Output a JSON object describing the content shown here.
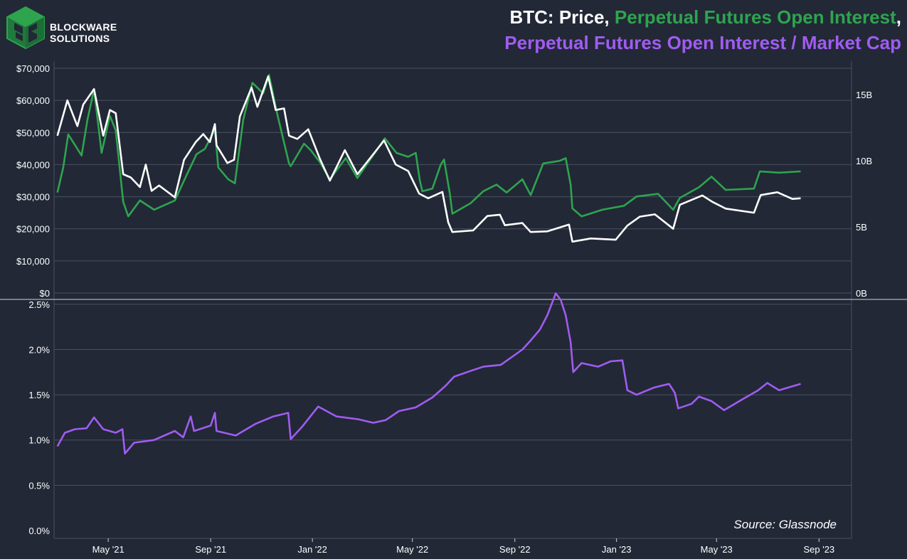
{
  "logo": {
    "line1": "BLOCKWARE",
    "line2": "SOLUTIONS"
  },
  "title": {
    "part_price": "BTC: Price,",
    "part_oi": "Perpetual Futures Open Interest",
    "part_sep": ",",
    "line2": "Perpetual Futures Open Interest / Market Cap"
  },
  "colors": {
    "background": "#222836",
    "price": "#ffffff",
    "open_interest": "#2ea44f",
    "oi_mcap": "#a05cf0",
    "grid": "#4a5060"
  },
  "source": "Source: Glassnode",
  "chart_data": [
    {
      "type": "line",
      "panel": "top",
      "x_ticks": [
        "May '21",
        "Sep '21",
        "Jan '22",
        "May '22",
        "Sep '22",
        "Jan '23",
        "May '23",
        "Sep '23"
      ],
      "x_tick_dates": [
        "2021-05-01",
        "2021-09-01",
        "2022-01-01",
        "2022-05-01",
        "2022-09-01",
        "2023-01-01",
        "2023-05-01",
        "2023-09-01"
      ],
      "x_range": [
        "2021-02-25",
        "2023-10-10"
      ],
      "y_left": {
        "ticks": [
          "$0",
          "$10,000",
          "$20,000",
          "$30,000",
          "$40,000",
          "$50,000",
          "$60,000",
          "$70,000"
        ],
        "ylim": [
          0,
          70000
        ]
      },
      "y_right": {
        "ticks": [
          "0B",
          "5B",
          "10B",
          "15B"
        ],
        "ylim": [
          0,
          17000000000
        ]
      },
      "grid": true,
      "series": [
        {
          "name": "Price",
          "axis": "left",
          "color": "#ffffff",
          "points": [
            [
              "2021-03-01",
              49000
            ],
            [
              "2021-03-13",
              60000
            ],
            [
              "2021-03-25",
              52000
            ],
            [
              "2021-04-01",
              58700
            ],
            [
              "2021-04-14",
              63500
            ],
            [
              "2021-04-25",
              49000
            ],
            [
              "2021-05-03",
              57000
            ],
            [
              "2021-05-10",
              56000
            ],
            [
              "2021-05-19",
              37000
            ],
            [
              "2021-05-28",
              36000
            ],
            [
              "2021-06-08",
              33000
            ],
            [
              "2021-06-15",
              40000
            ],
            [
              "2021-06-22",
              31800
            ],
            [
              "2021-07-01",
              33500
            ],
            [
              "2021-07-20",
              29800
            ],
            [
              "2021-07-31",
              41500
            ],
            [
              "2021-08-14",
              47000
            ],
            [
              "2021-08-23",
              49500
            ],
            [
              "2021-08-31",
              47000
            ],
            [
              "2021-09-06",
              52600
            ],
            [
              "2021-09-08",
              46000
            ],
            [
              "2021-09-21",
              40500
            ],
            [
              "2021-09-29",
              41500
            ],
            [
              "2021-10-06",
              55000
            ],
            [
              "2021-10-20",
              64000
            ],
            [
              "2021-10-27",
              58000
            ],
            [
              "2021-11-09",
              67500
            ],
            [
              "2021-11-18",
              57000
            ],
            [
              "2021-11-28",
              57500
            ],
            [
              "2021-12-04",
              49000
            ],
            [
              "2021-12-14",
              48000
            ],
            [
              "2021-12-27",
              51000
            ],
            [
              "2022-01-10",
              41800
            ],
            [
              "2022-01-22",
              35000
            ],
            [
              "2022-02-09",
              44500
            ],
            [
              "2022-02-24",
              37000
            ],
            [
              "2022-03-28",
              47500
            ],
            [
              "2022-04-11",
              40000
            ],
            [
              "2022-04-26",
              38000
            ],
            [
              "2022-05-09",
              31000
            ],
            [
              "2022-05-20",
              29500
            ],
            [
              "2022-06-06",
              31500
            ],
            [
              "2022-06-13",
              22000
            ],
            [
              "2022-06-18",
              19000
            ],
            [
              "2022-07-13",
              19500
            ],
            [
              "2022-07-30",
              24000
            ],
            [
              "2022-08-14",
              24400
            ],
            [
              "2022-08-20",
              21100
            ],
            [
              "2022-09-10",
              21800
            ],
            [
              "2022-09-20",
              19000
            ],
            [
              "2022-10-10",
              19200
            ],
            [
              "2022-11-05",
              21300
            ],
            [
              "2022-11-09",
              16000
            ],
            [
              "2022-12-01",
              17000
            ],
            [
              "2022-12-31",
              16600
            ],
            [
              "2023-01-14",
              21000
            ],
            [
              "2023-01-29",
              23800
            ],
            [
              "2023-02-16",
              24500
            ],
            [
              "2023-03-10",
              20000
            ],
            [
              "2023-03-18",
              27500
            ],
            [
              "2023-04-14",
              30400
            ],
            [
              "2023-04-26",
              28400
            ],
            [
              "2023-05-12",
              26300
            ],
            [
              "2023-06-15",
              25000
            ],
            [
              "2023-06-23",
              30500
            ],
            [
              "2023-07-13",
              31400
            ],
            [
              "2023-07-31",
              29300
            ],
            [
              "2023-08-10",
              29500
            ]
          ]
        },
        {
          "name": "Perpetual Futures Open Interest",
          "axis": "right",
          "color": "#2ea44f",
          "points": [
            [
              "2021-03-01",
              7600000000
            ],
            [
              "2021-03-08",
              9500000000
            ],
            [
              "2021-03-14",
              12000000000
            ],
            [
              "2021-03-22",
              11200000000
            ],
            [
              "2021-03-30",
              10400000000
            ],
            [
              "2021-04-06",
              13100000000
            ],
            [
              "2021-04-14",
              15400000000
            ],
            [
              "2021-04-23",
              10600000000
            ],
            [
              "2021-05-03",
              13400000000
            ],
            [
              "2021-05-10",
              12300000000
            ],
            [
              "2021-05-19",
              6900000000
            ],
            [
              "2021-05-25",
              5800000000
            ],
            [
              "2021-06-08",
              7000000000
            ],
            [
              "2021-06-25",
              6300000000
            ],
            [
              "2021-07-20",
              7000000000
            ],
            [
              "2021-07-31",
              8500000000
            ],
            [
              "2021-08-15",
              10500000000
            ],
            [
              "2021-08-25",
              10900000000
            ],
            [
              "2021-09-06",
              12400000000
            ],
            [
              "2021-09-10",
              9500000000
            ],
            [
              "2021-09-22",
              8600000000
            ],
            [
              "2021-09-30",
              8300000000
            ],
            [
              "2021-10-10",
              13100000000
            ],
            [
              "2021-10-21",
              15900000000
            ],
            [
              "2021-11-03",
              15100000000
            ],
            [
              "2021-11-10",
              16500000000
            ],
            [
              "2021-11-20",
              13500000000
            ],
            [
              "2021-12-04",
              9800000000
            ],
            [
              "2021-12-06",
              9600000000
            ],
            [
              "2021-12-22",
              11300000000
            ],
            [
              "2021-12-30",
              10800000000
            ],
            [
              "2022-01-10",
              9900000000
            ],
            [
              "2022-01-22",
              8600000000
            ],
            [
              "2022-02-10",
              10200000000
            ],
            [
              "2022-02-24",
              8700000000
            ],
            [
              "2022-03-29",
              11700000000
            ],
            [
              "2022-04-12",
              10600000000
            ],
            [
              "2022-04-26",
              10300000000
            ],
            [
              "2022-05-05",
              10600000000
            ],
            [
              "2022-05-10",
              8500000000
            ],
            [
              "2022-05-13",
              7700000000
            ],
            [
              "2022-05-25",
              7900000000
            ],
            [
              "2022-06-04",
              9700000000
            ],
            [
              "2022-06-08",
              10100000000
            ],
            [
              "2022-06-15",
              7500000000
            ],
            [
              "2022-06-18",
              6000000000
            ],
            [
              "2022-07-10",
              6800000000
            ],
            [
              "2022-07-25",
              7700000000
            ],
            [
              "2022-08-10",
              8200000000
            ],
            [
              "2022-08-22",
              7600000000
            ],
            [
              "2022-09-10",
              8600000000
            ],
            [
              "2022-09-20",
              7400000000
            ],
            [
              "2022-10-05",
              9800000000
            ],
            [
              "2022-10-25",
              10000000000
            ],
            [
              "2022-11-01",
              10200000000
            ],
            [
              "2022-11-07",
              8200000000
            ],
            [
              "2022-11-09",
              6400000000
            ],
            [
              "2022-11-20",
              5800000000
            ],
            [
              "2022-12-15",
              6300000000
            ],
            [
              "2023-01-10",
              6600000000
            ],
            [
              "2023-01-25",
              7300000000
            ],
            [
              "2023-02-20",
              7500000000
            ],
            [
              "2023-03-10",
              6300000000
            ],
            [
              "2023-03-18",
              7200000000
            ],
            [
              "2023-04-10",
              8000000000
            ],
            [
              "2023-04-25",
              8800000000
            ],
            [
              "2023-05-12",
              7800000000
            ],
            [
              "2023-06-15",
              7900000000
            ],
            [
              "2023-06-22",
              9200000000
            ],
            [
              "2023-07-15",
              9100000000
            ],
            [
              "2023-08-10",
              9200000000
            ]
          ]
        }
      ]
    },
    {
      "type": "line",
      "panel": "bottom",
      "x_ticks": [
        "May '21",
        "Sep '21",
        "Jan '22",
        "May '22",
        "Sep '22",
        "Jan '23",
        "May '23",
        "Sep '23"
      ],
      "x_tick_dates": [
        "2021-05-01",
        "2021-09-01",
        "2022-01-01",
        "2022-05-01",
        "2022-09-01",
        "2023-01-01",
        "2023-05-01",
        "2023-09-01"
      ],
      "x_range": [
        "2021-02-25",
        "2023-10-10"
      ],
      "y": {
        "ticks": [
          "0.0%",
          "0.5%",
          "1.0%",
          "1.5%",
          "2.0%",
          "2.5%"
        ],
        "ylim": [
          0,
          2.75
        ]
      },
      "grid": true,
      "series": [
        {
          "name": "Perpetual Futures Open Interest / Market Cap",
          "axis": "left",
          "color": "#a05cf0",
          "points": [
            [
              "2021-03-01",
              0.93
            ],
            [
              "2021-03-10",
              1.08
            ],
            [
              "2021-03-22",
              1.12
            ],
            [
              "2021-04-05",
              1.13
            ],
            [
              "2021-04-14",
              1.25
            ],
            [
              "2021-04-25",
              1.12
            ],
            [
              "2021-05-10",
              1.08
            ],
            [
              "2021-05-18",
              1.12
            ],
            [
              "2021-05-21",
              0.85
            ],
            [
              "2021-06-01",
              0.97
            ],
            [
              "2021-06-25",
              1.0
            ],
            [
              "2021-07-20",
              1.1
            ],
            [
              "2021-07-30",
              1.03
            ],
            [
              "2021-08-08",
              1.26
            ],
            [
              "2021-08-12",
              1.1
            ],
            [
              "2021-09-01",
              1.16
            ],
            [
              "2021-09-06",
              1.3
            ],
            [
              "2021-09-08",
              1.1
            ],
            [
              "2021-10-01",
              1.05
            ],
            [
              "2021-10-25",
              1.18
            ],
            [
              "2021-11-15",
              1.26
            ],
            [
              "2021-12-03",
              1.3
            ],
            [
              "2021-12-06",
              1.01
            ],
            [
              "2021-12-20",
              1.15
            ],
            [
              "2022-01-08",
              1.37
            ],
            [
              "2022-01-30",
              1.26
            ],
            [
              "2022-02-25",
              1.23
            ],
            [
              "2022-03-15",
              1.19
            ],
            [
              "2022-03-30",
              1.22
            ],
            [
              "2022-04-15",
              1.32
            ],
            [
              "2022-05-05",
              1.36
            ],
            [
              "2022-05-25",
              1.47
            ],
            [
              "2022-06-10",
              1.6
            ],
            [
              "2022-06-20",
              1.7
            ],
            [
              "2022-07-12",
              1.77
            ],
            [
              "2022-07-25",
              1.81
            ],
            [
              "2022-08-15",
              1.83
            ],
            [
              "2022-09-10",
              2.0
            ],
            [
              "2022-09-20",
              2.1
            ],
            [
              "2022-10-01",
              2.22
            ],
            [
              "2022-10-10",
              2.38
            ],
            [
              "2022-10-20",
              2.62
            ],
            [
              "2022-10-26",
              2.55
            ],
            [
              "2022-11-01",
              2.38
            ],
            [
              "2022-11-07",
              2.08
            ],
            [
              "2022-11-10",
              1.75
            ],
            [
              "2022-11-20",
              1.85
            ],
            [
              "2022-12-10",
              1.81
            ],
            [
              "2022-12-25",
              1.87
            ],
            [
              "2023-01-08",
              1.88
            ],
            [
              "2023-01-14",
              1.55
            ],
            [
              "2023-01-25",
              1.5
            ],
            [
              "2023-02-15",
              1.58
            ],
            [
              "2023-03-05",
              1.62
            ],
            [
              "2023-03-12",
              1.52
            ],
            [
              "2023-03-16",
              1.35
            ],
            [
              "2023-04-01",
              1.4
            ],
            [
              "2023-04-10",
              1.48
            ],
            [
              "2023-04-25",
              1.43
            ],
            [
              "2023-05-10",
              1.33
            ],
            [
              "2023-06-01",
              1.45
            ],
            [
              "2023-06-20",
              1.55
            ],
            [
              "2023-07-01",
              1.63
            ],
            [
              "2023-07-15",
              1.55
            ],
            [
              "2023-08-10",
              1.62
            ]
          ]
        }
      ]
    }
  ]
}
